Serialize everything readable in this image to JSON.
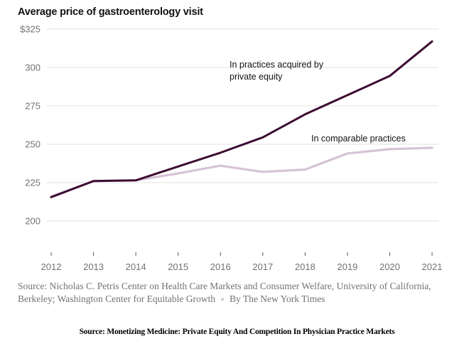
{
  "chart_data": {
    "type": "line",
    "title": "Average price of gastroenterology visit",
    "xlabel": "",
    "ylabel": "",
    "x": [
      2012,
      2013,
      2014,
      2015,
      2016,
      2017,
      2018,
      2019,
      2020,
      2021
    ],
    "x_tick_labels": [
      "2012",
      "2013",
      "2014",
      "2015",
      "2016",
      "2017",
      "2018",
      "2019",
      "2020",
      "2021"
    ],
    "y_ticks": [
      200,
      225,
      250,
      275,
      300,
      325
    ],
    "y_tick_labels": [
      "200",
      "225",
      "250",
      "275",
      "300",
      "$325"
    ],
    "ylim": [
      178,
      325
    ],
    "grid": true,
    "series": [
      {
        "name": "In practices acquired by private equity",
        "label_lines": [
          "In practices acquired by",
          "private equity"
        ],
        "color": "#3d0c32",
        "values": [
          215.5,
          226,
          226.5,
          235.5,
          244.5,
          254.5,
          269.5,
          282,
          294.5,
          317
        ]
      },
      {
        "name": "In comparable practices",
        "label_lines": [
          "In comparable practices"
        ],
        "color": "#d6c3d6",
        "values": [
          216,
          226,
          226.5,
          231,
          236,
          232,
          233.5,
          244,
          246.8,
          247.7
        ]
      }
    ]
  },
  "source_note": {
    "text": "Source: Nicholas C. Petris Center on Health Care Markets and Consumer Welfare, University of California, Berkeley; Washington Center for Equitable Growth",
    "byline": "By The New York Times"
  },
  "footer": "Source: Monetizing Medicine: Private Equity And Competition In Physician Practice Markets"
}
